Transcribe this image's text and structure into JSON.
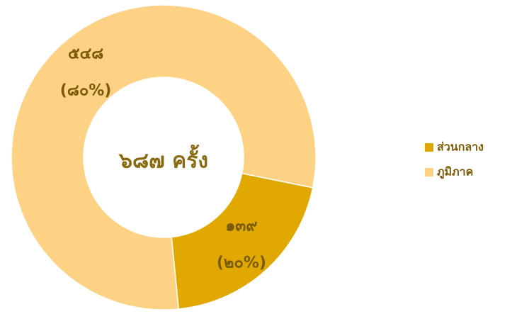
{
  "chart_data": {
    "type": "donut",
    "center_label": "๖๘๗ ครั้ง",
    "categories": [
      "ส่วนกลาง",
      "ภูมิภาค"
    ],
    "values": [
      139,
      548
    ],
    "value_labels": [
      "๑๓๙",
      "๕๔๘"
    ],
    "percents": [
      20,
      80
    ],
    "percent_labels": [
      "(๒๐%)",
      "(๘๐%)"
    ],
    "colors": [
      "#e0a800",
      "#fdd285"
    ],
    "legend": "right"
  }
}
